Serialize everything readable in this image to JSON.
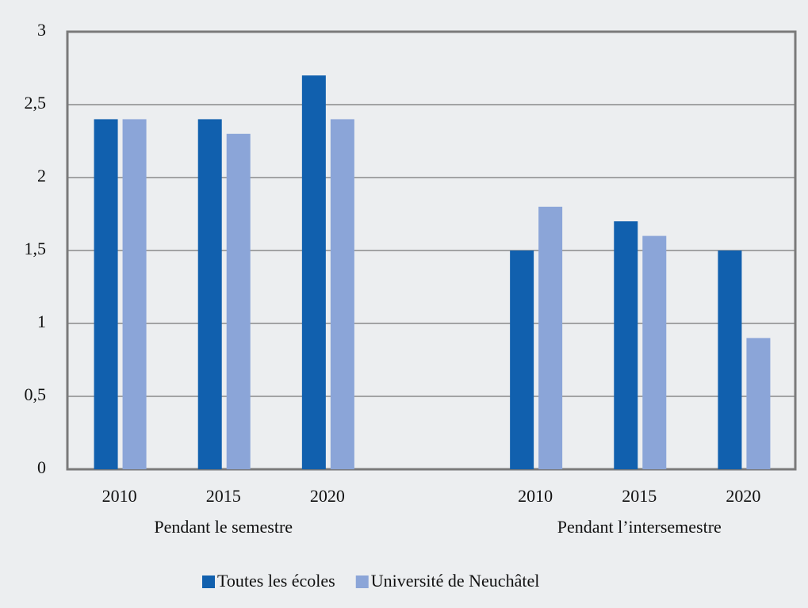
{
  "chart_data": {
    "type": "bar",
    "categories": [
      "2010",
      "2015",
      "2020",
      null,
      "2010",
      "2015",
      "2020"
    ],
    "group_labels": [
      "Pendant le semestre",
      "Pendant l’intersemestre"
    ],
    "series": [
      {
        "name": "Toutes les écoles",
        "color": "#1160ae",
        "values": [
          2.4,
          2.4,
          2.7,
          null,
          1.5,
          1.7,
          1.5
        ]
      },
      {
        "name": "Université de Neuchâtel",
        "color": "#8ba5d8",
        "values": [
          2.4,
          2.3,
          2.4,
          null,
          1.8,
          1.6,
          0.9
        ]
      }
    ],
    "ylim": [
      0,
      3
    ],
    "yticks": [
      0,
      {
        "value": 0.5,
        "label": "0,5"
      },
      1,
      {
        "value": 1.5,
        "label": "1,5"
      },
      2,
      {
        "value": 2.5,
        "label": "2,5"
      },
      3
    ],
    "grid": true,
    "legend": "bottom"
  }
}
